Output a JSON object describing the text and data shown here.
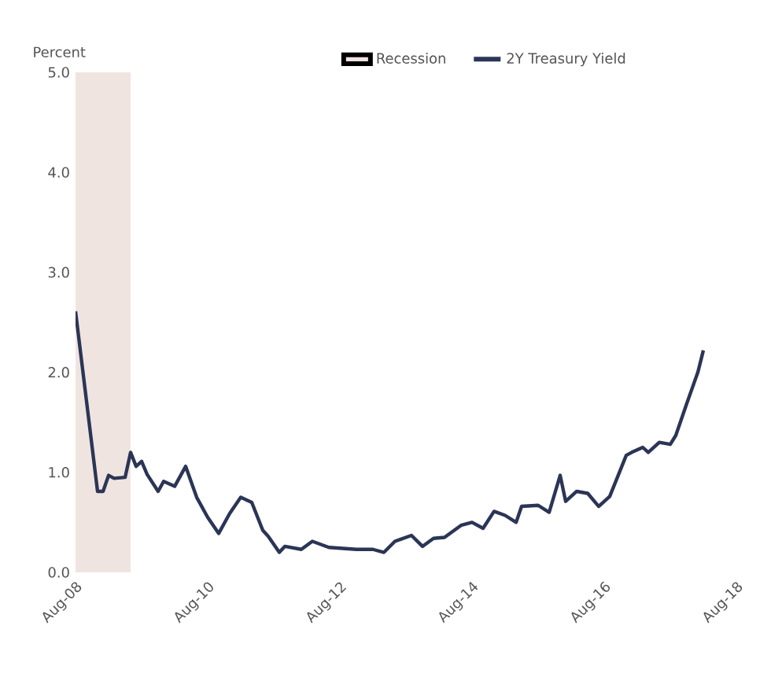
{
  "chart_data": {
    "type": "line",
    "ylabel": "Percent",
    "x": [
      "2008-08",
      "2008-12",
      "2009-01",
      "2009-02",
      "2009-03",
      "2009-05",
      "2009-06",
      "2009-07",
      "2009-08",
      "2009-09",
      "2009-11",
      "2009-12",
      "2010-02",
      "2010-04",
      "2010-06",
      "2010-08",
      "2010-10",
      "2010-12",
      "2011-02",
      "2011-04",
      "2011-06",
      "2011-07",
      "2011-09",
      "2011-10",
      "2012-01",
      "2012-03",
      "2012-06",
      "2012-11",
      "2013-02",
      "2013-04",
      "2013-06",
      "2013-09",
      "2013-11",
      "2014-01",
      "2014-03",
      "2014-06",
      "2014-08",
      "2014-10",
      "2014-12",
      "2015-02",
      "2015-04",
      "2015-05",
      "2015-08",
      "2015-10",
      "2015-12",
      "2016-01",
      "2016-03",
      "2016-05",
      "2016-07",
      "2016-09",
      "2016-12",
      "2017-01",
      "2017-03",
      "2017-04",
      "2017-06",
      "2017-08",
      "2017-09",
      "2017-11",
      "2018-01",
      "2018-02"
    ],
    "series": [
      {
        "name": "2Y Treasury Yield",
        "color": "#2b3556",
        "values": [
          2.61,
          0.81,
          0.81,
          0.97,
          0.94,
          0.95,
          1.2,
          1.06,
          1.11,
          0.98,
          0.81,
          0.91,
          0.86,
          1.06,
          0.75,
          0.55,
          0.39,
          0.59,
          0.75,
          0.7,
          0.42,
          0.36,
          0.2,
          0.26,
          0.23,
          0.31,
          0.25,
          0.23,
          0.23,
          0.2,
          0.31,
          0.37,
          0.26,
          0.34,
          0.35,
          0.47,
          0.5,
          0.44,
          0.61,
          0.57,
          0.5,
          0.66,
          0.67,
          0.6,
          0.97,
          0.71,
          0.81,
          0.79,
          0.66,
          0.76,
          1.17,
          1.2,
          1.25,
          1.2,
          1.3,
          1.28,
          1.37,
          1.69,
          2.0,
          2.22
        ]
      }
    ],
    "bands": [
      {
        "axis": "x",
        "from": "2008-08",
        "to": "2009-06",
        "label": "Recession",
        "color": "#f0e4e1"
      }
    ],
    "xlim": [
      "2008-08",
      "2018-08"
    ],
    "xticks": [
      {
        "value": "2008-08",
        "label": "Aug-08"
      },
      {
        "value": "2010-08",
        "label": "Aug-10"
      },
      {
        "value": "2012-08",
        "label": "Aug-12"
      },
      {
        "value": "2014-08",
        "label": "Aug-14"
      },
      {
        "value": "2016-08",
        "label": "Aug-16"
      },
      {
        "value": "2018-08",
        "label": "Aug-18"
      }
    ],
    "ylim": [
      0,
      5
    ],
    "yticks": [
      {
        "value": 0,
        "label": "0.0"
      },
      {
        "value": 1,
        "label": "1.0"
      },
      {
        "value": 2,
        "label": "2.0"
      },
      {
        "value": 3,
        "label": "3.0"
      },
      {
        "value": 4,
        "label": "4.0"
      },
      {
        "value": 5,
        "label": "5.0"
      }
    ],
    "legend": "top"
  }
}
